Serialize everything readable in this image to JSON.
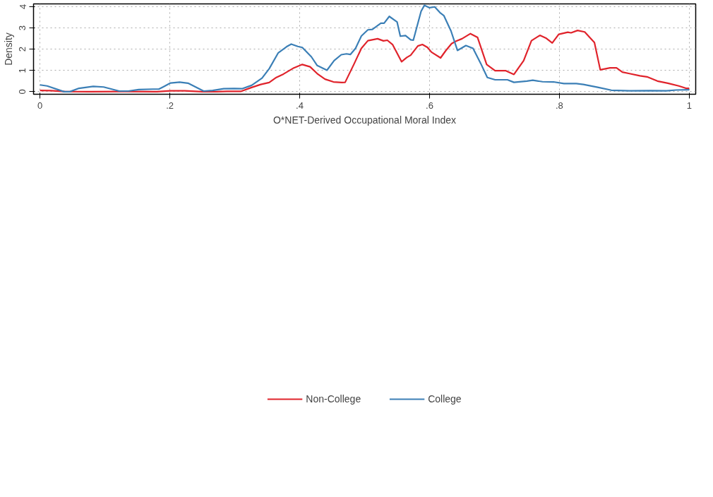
{
  "chart_data": {
    "type": "line",
    "xlabel": "O*NET-Derived Occupational Moral Index",
    "ylabel": "Density",
    "xlim": [
      -0.01,
      1.01
    ],
    "ylim": [
      -0.12,
      4.13
    ],
    "xticks": [
      0,
      {
        "value": 0.2,
        "label": ".2"
      },
      {
        "value": 0.4,
        "label": ".4"
      },
      {
        "value": 0.6,
        "label": ".6"
      },
      {
        "value": 0.8,
        "label": ".8"
      },
      1
    ],
    "yticks": [
      0,
      1,
      2,
      3,
      4
    ],
    "grid": true,
    "legend": "bottom",
    "line_style": "solid",
    "marker": "none",
    "series": [
      {
        "name": "Non-College",
        "color": "#e0232b",
        "x": [
          0,
          0.016,
          0.038,
          0.076,
          0.13,
          0.18,
          0.201,
          0.223,
          0.25,
          0.272,
          0.288,
          0.31,
          0.326,
          0.34,
          0.353,
          0.364,
          0.375,
          0.391,
          0.404,
          0.416,
          0.427,
          0.439,
          0.452,
          0.465,
          0.47,
          0.484,
          0.495,
          0.505,
          0.52,
          0.529,
          0.535,
          0.543,
          0.557,
          0.565,
          0.571,
          0.582,
          0.589,
          0.597,
          0.603,
          0.617,
          0.625,
          0.634,
          0.641,
          0.65,
          0.663,
          0.674,
          0.688,
          0.701,
          0.717,
          0.73,
          0.745,
          0.757,
          0.77,
          0.78,
          0.789,
          0.799,
          0.813,
          0.818,
          0.828,
          0.839,
          0.854,
          0.863,
          0.878,
          0.888,
          0.897,
          0.908,
          0.924,
          0.935,
          0.951,
          0.967,
          0.984,
          0.995,
          1
        ],
        "values": [
          0.06,
          0.05,
          0.01,
          0,
          0.01,
          0,
          0.04,
          0.04,
          0,
          0,
          0.02,
          0.02,
          0.2,
          0.34,
          0.43,
          0.67,
          0.83,
          1.12,
          1.28,
          1.17,
          0.85,
          0.59,
          0.46,
          0.43,
          0.44,
          1.32,
          2.04,
          2.4,
          2.49,
          2.39,
          2.42,
          2.22,
          1.41,
          1.61,
          1.72,
          2.15,
          2.22,
          2.08,
          1.86,
          1.59,
          1.93,
          2.26,
          2.38,
          2.49,
          2.73,
          2.55,
          1.28,
          0.99,
          0.99,
          0.81,
          1.46,
          2.4,
          2.65,
          2.51,
          2.29,
          2.7,
          2.8,
          2.77,
          2.88,
          2.81,
          2.31,
          1.03,
          1.12,
          1.12,
          0.92,
          0.85,
          0.75,
          0.7,
          0.5,
          0.4,
          0.27,
          0.16,
          0.16
        ]
      },
      {
        "name": "College",
        "color": "#3b7fb6",
        "x": [
          0,
          0.011,
          0.037,
          0.046,
          0.06,
          0.082,
          0.098,
          0.122,
          0.136,
          0.152,
          0.174,
          0.183,
          0.19,
          0.201,
          0.215,
          0.228,
          0.252,
          0.266,
          0.283,
          0.299,
          0.311,
          0.326,
          0.342,
          0.353,
          0.367,
          0.38,
          0.387,
          0.397,
          0.404,
          0.418,
          0.427,
          0.442,
          0.453,
          0.464,
          0.472,
          0.478,
          0.486,
          0.495,
          0.505,
          0.512,
          0.525,
          0.53,
          0.538,
          0.55,
          0.555,
          0.563,
          0.571,
          0.575,
          0.587,
          0.592,
          0.6,
          0.608,
          0.616,
          0.622,
          0.633,
          0.643,
          0.656,
          0.667,
          0.679,
          0.689,
          0.701,
          0.72,
          0.73,
          0.75,
          0.759,
          0.774,
          0.791,
          0.807,
          0.826,
          0.837,
          0.859,
          0.88,
          0.908,
          0.94,
          0.965,
          0.98,
          1
        ],
        "values": [
          0.32,
          0.27,
          0,
          0,
          0.16,
          0.25,
          0.22,
          0.03,
          0.03,
          0.1,
          0.12,
          0.12,
          0.23,
          0.41,
          0.45,
          0.4,
          0.03,
          0.06,
          0.14,
          0.15,
          0.14,
          0.3,
          0.64,
          1.08,
          1.83,
          2.12,
          2.24,
          2.13,
          2.08,
          1.64,
          1.23,
          1.01,
          1.46,
          1.74,
          1.78,
          1.75,
          2.04,
          2.62,
          2.91,
          2.93,
          3.22,
          3.22,
          3.54,
          3.28,
          2.61,
          2.64,
          2.44,
          2.42,
          3.78,
          4.06,
          3.95,
          3.99,
          3.72,
          3.58,
          2.86,
          1.94,
          2.17,
          2.04,
          1.32,
          0.67,
          0.56,
          0.56,
          0.44,
          0.5,
          0.54,
          0.47,
          0.46,
          0.38,
          0.38,
          0.34,
          0.21,
          0.07,
          0.04,
          0.05,
          0.04,
          0.08,
          0.09
        ]
      }
    ]
  }
}
